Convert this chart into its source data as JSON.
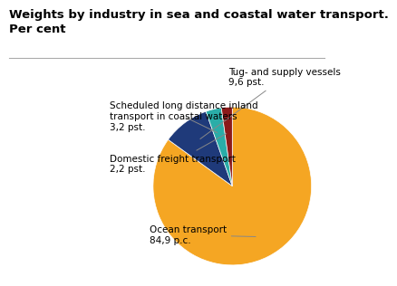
{
  "title": "Weights by industry in sea and coastal water transport.\nPer cent",
  "slices": [
    {
      "label": "Ocean transport\n84,9 p.c.",
      "value": 84.9,
      "color": "#F5A623"
    },
    {
      "label": "Tug- and supply vessels\n9,6 pst.",
      "value": 9.6,
      "color": "#1F3A7A"
    },
    {
      "label": "Scheduled long distance inland\ntransport in coastal waters\n3,2 pst.",
      "value": 3.2,
      "color": "#2AADA8"
    },
    {
      "label": "Domestic freight transport\n2,2 pst.",
      "value": 2.2,
      "color": "#8B1A1A"
    }
  ],
  "background_color": "#ffffff",
  "title_fontsize": 9.5,
  "label_fontsize": 7.5,
  "startangle": 90
}
